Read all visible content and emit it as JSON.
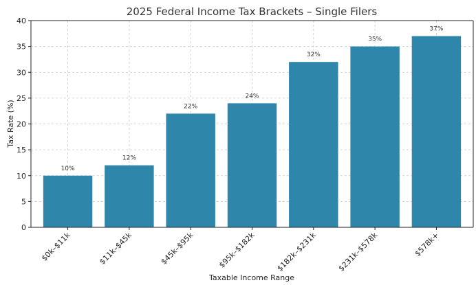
{
  "chart_data": {
    "type": "bar",
    "title": "2025 Federal Income Tax Brackets – Single Filers",
    "xlabel": "Taxable Income Range",
    "ylabel": "Tax Rate (%)",
    "categories": [
      "$0k–$11k",
      "$11k–$45k",
      "$45k–$95k",
      "$95k–$182k",
      "$182k–$231k",
      "$231k–$578k",
      "$578k+"
    ],
    "values": [
      10,
      12,
      22,
      24,
      32,
      35,
      37
    ],
    "data_labels": [
      "10%",
      "12%",
      "22%",
      "24%",
      "32%",
      "35%",
      "37%"
    ],
    "ylim": [
      0,
      40
    ],
    "yticks": [
      0,
      5,
      10,
      15,
      20,
      25,
      30,
      35,
      40
    ],
    "grid": true,
    "bar_color": "#2e86ab"
  }
}
